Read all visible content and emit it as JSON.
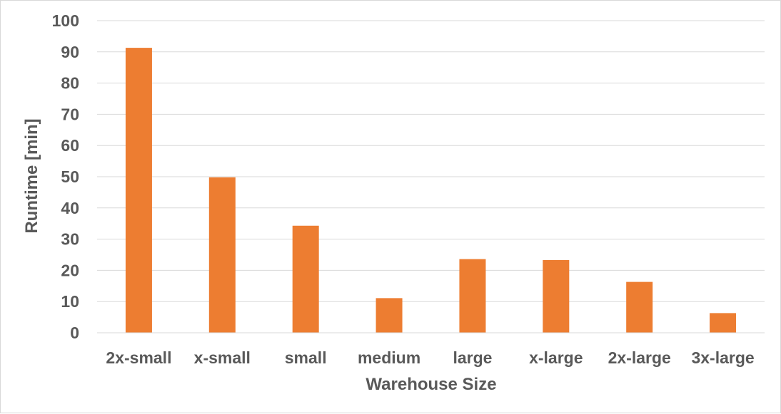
{
  "chart_data": {
    "type": "bar",
    "title": "",
    "xlabel": "Warehouse Size",
    "ylabel": "Runtime [min]",
    "categories": [
      "2x-small",
      "x-small",
      "small",
      "medium",
      "large",
      "x-large",
      "2x-large",
      "3x-large"
    ],
    "values": [
      91.3,
      49.8,
      34.3,
      11.1,
      23.6,
      23.3,
      16.3,
      6.3
    ],
    "ylim": [
      0,
      100
    ],
    "yticks": [
      "0",
      "10",
      "20",
      "30",
      "40",
      "50",
      "60",
      "70",
      "80",
      "90",
      "100"
    ],
    "grid": true,
    "legend": "none",
    "bar_color": "#ED7D31",
    "grid_color": "#D9D9D9",
    "text_color": "#595959"
  }
}
